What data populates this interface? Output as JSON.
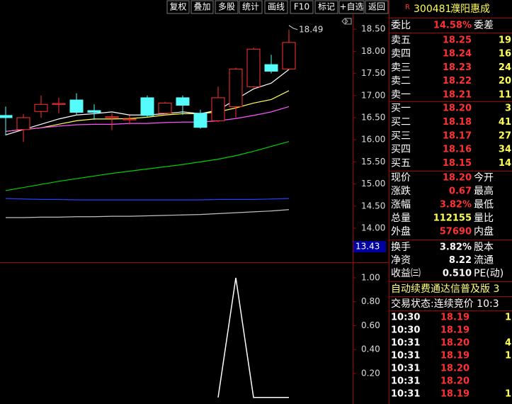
{
  "toolbar": [
    "复权",
    "叠加",
    "多股",
    "统计",
    "画线",
    "F10",
    "标记",
    "+自选",
    "返回"
  ],
  "chart_data": [
    {
      "type": "candlestick",
      "ylim": [
        13.23,
        18.84
      ],
      "yticks": [
        {
          "value": 14,
          "label": "14.00"
        },
        {
          "value": 14.5,
          "label": "14.50"
        },
        {
          "value": 15,
          "label": "15.00"
        },
        {
          "value": 15.5,
          "label": "15.50"
        },
        {
          "value": 16,
          "label": "16.00"
        },
        {
          "value": 16.5,
          "label": "16.50"
        },
        {
          "value": 17,
          "label": "17.00"
        },
        {
          "value": 17.5,
          "label": "17.50"
        },
        {
          "value": 18,
          "label": "18.00"
        },
        {
          "value": 18.5,
          "label": "18.50"
        }
      ],
      "open": [
        16.55,
        16.23,
        16.64,
        16.8,
        16.9,
        16.66,
        16.5,
        16.45,
        16.95,
        16.6,
        16.95,
        16.6,
        16.43,
        16.75,
        17.2,
        17.7,
        17.6
      ],
      "high": [
        16.75,
        16.58,
        17.0,
        16.95,
        17.05,
        16.8,
        16.6,
        16.55,
        17.0,
        16.86,
        17.0,
        16.68,
        17.2,
        17.63,
        18.08,
        17.92,
        18.49
      ],
      "low": [
        16.1,
        15.95,
        16.5,
        16.6,
        16.55,
        16.45,
        16.22,
        16.35,
        16.5,
        16.56,
        16.56,
        16.25,
        16.4,
        16.5,
        17.18,
        17.5,
        17.57
      ],
      "close": [
        16.5,
        16.5,
        16.8,
        16.82,
        16.62,
        16.62,
        16.52,
        16.47,
        16.55,
        16.83,
        16.78,
        16.28,
        16.95,
        17.6,
        18.05,
        17.55,
        18.2
      ],
      "up_color": "#ff3232",
      "down_color": "#54fcfc",
      "lines": [
        {
          "color": "#ffffff",
          "values": [
            16.11,
            16.23,
            16.35,
            16.47,
            16.56,
            16.59,
            16.63,
            16.56,
            16.56,
            16.59,
            16.63,
            16.59,
            16.67,
            16.91,
            17.15,
            17.28,
            17.59
          ]
        },
        {
          "color": "#ffff54",
          "values": [
            16.19,
            16.23,
            16.27,
            16.35,
            16.43,
            16.47,
            16.47,
            16.48,
            16.51,
            16.56,
            16.59,
            16.59,
            16.63,
            16.72,
            16.83,
            16.91,
            17.11
          ]
        },
        {
          "color": "#ff54ff",
          "values": [
            16.19,
            16.23,
            16.27,
            16.31,
            16.34,
            16.35,
            16.35,
            16.37,
            16.37,
            16.39,
            16.4,
            16.4,
            16.43,
            16.48,
            16.55,
            16.63,
            16.75
          ]
        },
        {
          "color": "#00d000",
          "values": [
            14.85,
            14.92,
            14.99,
            15.06,
            15.12,
            15.18,
            15.24,
            15.29,
            15.34,
            15.39,
            15.44,
            15.5,
            15.56,
            15.64,
            15.74,
            15.85,
            15.96
          ]
        },
        {
          "color": "#2040ff",
          "values": [
            14.67,
            14.66,
            14.65,
            14.65,
            14.64,
            14.64,
            14.64,
            14.64,
            14.64,
            14.64,
            14.64,
            14.64,
            14.65,
            14.65,
            14.65,
            14.66,
            14.67
          ]
        },
        {
          "color": "#c0c0c0",
          "values": [
            14.24,
            14.24,
            14.25,
            14.25,
            14.26,
            14.26,
            14.27,
            14.27,
            14.28,
            14.29,
            14.3,
            14.31,
            14.33,
            14.35,
            14.37,
            14.39,
            14.42
          ]
        }
      ],
      "max_label": 18.49,
      "cursor_label": 13.43
    },
    {
      "type": "line",
      "ylim": [
        -0.025,
        1.13
      ],
      "yticks": [
        {
          "value": 0.2,
          "label": "0.20"
        },
        {
          "value": 0.4,
          "label": "0.40"
        },
        {
          "value": 0.6,
          "label": "0.60"
        },
        {
          "value": 0.8,
          "label": "0.80"
        },
        {
          "value": 1,
          "label": "1.00"
        }
      ],
      "series": [
        {
          "color": "#ffffff",
          "values": [
            null,
            null,
            null,
            null,
            null,
            null,
            null,
            null,
            null,
            null,
            null,
            null,
            0,
            1,
            0,
            0,
            0
          ]
        }
      ]
    }
  ],
  "quote": {
    "mark": "R",
    "code": "300481",
    "name": "濮阳惠成",
    "ratio": {
      "label": "委比",
      "value": "14.58%",
      "label2": "委差",
      "color": "#ff3232"
    },
    "sell": [
      {
        "label": "卖五",
        "value": "18.25",
        "extra": "19",
        "color": "#ff3232"
      },
      {
        "label": "卖四",
        "value": "18.24",
        "extra": "16",
        "color": "#ff3232"
      },
      {
        "label": "卖三",
        "value": "18.23",
        "extra": "24",
        "color": "#ff3232"
      },
      {
        "label": "卖二",
        "value": "18.22",
        "extra": "20",
        "color": "#ff3232"
      },
      {
        "label": "卖一",
        "value": "18.21",
        "extra": "11",
        "color": "#ff3232"
      }
    ],
    "buy": [
      {
        "label": "买一",
        "value": "18.20",
        "extra": "3",
        "color": "#ff3232"
      },
      {
        "label": "买二",
        "value": "18.18",
        "extra": "41",
        "color": "#ff3232"
      },
      {
        "label": "买三",
        "value": "18.17",
        "extra": "27",
        "color": "#ff3232"
      },
      {
        "label": "买四",
        "value": "18.16",
        "extra": "34",
        "color": "#ff3232"
      },
      {
        "label": "买五",
        "value": "18.15",
        "extra": "14",
        "color": "#ff3232"
      }
    ],
    "stats": [
      {
        "label": "现价",
        "value": "18.20",
        "label2": "今开",
        "color": "#ff3232"
      },
      {
        "label": "涨跌",
        "value": "0.67",
        "label2": "最高",
        "color": "#ff3232"
      },
      {
        "label": "涨幅",
        "value": "3.82%",
        "label2": "最低",
        "color": "#ff3232"
      },
      {
        "label": "总量",
        "value": "112155",
        "label2": "量比",
        "color": "#ffff54"
      },
      {
        "label": "外盘",
        "value": "57690",
        "label2": "内盘",
        "color": "#ff3232"
      }
    ],
    "fund": [
      {
        "label": "换手",
        "value": "3.82%",
        "label2": "股本",
        "color": "#ffffff"
      },
      {
        "label": "净资",
        "value": "8.22",
        "label2": "流通",
        "color": "#ffffff"
      },
      {
        "label": "收益㈢",
        "value": "0.510",
        "label2": "PE(动)",
        "color": "#ffffff"
      }
    ],
    "notice": "自动续费通达信普及版 3",
    "status": "交易状态:连续竞价 10:3",
    "trades": [
      {
        "time": "10:30",
        "price": "18.19",
        "vol": "1"
      },
      {
        "time": "10:30",
        "price": "18.19"
      },
      {
        "time": "10:31",
        "price": "18.20",
        "vol": "4"
      },
      {
        "time": "10:31",
        "price": "18.19",
        "vol": "1"
      },
      {
        "time": "10:31",
        "price": "18.20"
      },
      {
        "time": "10:31",
        "price": "18.20"
      },
      {
        "time": "10:31",
        "price": "18.19",
        "vol": "1"
      }
    ]
  }
}
